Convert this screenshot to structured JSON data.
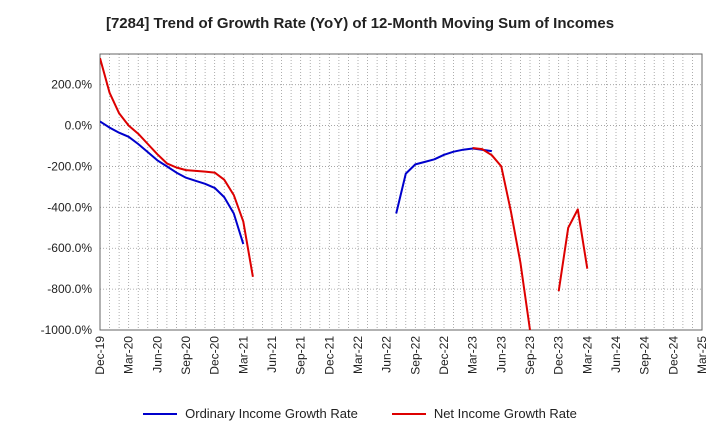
{
  "chart_data": {
    "type": "line",
    "title": "[7284]  Trend of Growth Rate (YoY) of 12-Month Moving Sum of Incomes",
    "xlabel": "",
    "ylabel": "",
    "ylim": [
      -1000,
      350
    ],
    "yticks": [
      200,
      0,
      -200,
      -400,
      -600,
      -800,
      -1000
    ],
    "ytick_labels": [
      "200.0%",
      "0.0%",
      "-200.0%",
      "-400.0%",
      "-600.0%",
      "-800.0%",
      "-1000.0%"
    ],
    "x_months": 63,
    "xticks": [
      0,
      3,
      6,
      9,
      12,
      15,
      18,
      21,
      24,
      27,
      30,
      33,
      36,
      39,
      42,
      45,
      48,
      51,
      54,
      57,
      60,
      63
    ],
    "xtick_labels": [
      "Dec-19",
      "Mar-20",
      "Jun-20",
      "Sep-20",
      "Dec-20",
      "Mar-21",
      "Jun-21",
      "Sep-21",
      "Dec-21",
      "Mar-22",
      "Jun-22",
      "Sep-22",
      "Dec-22",
      "Mar-23",
      "Jun-23",
      "Sep-23",
      "Dec-23",
      "Mar-24",
      "Jun-24",
      "Sep-24",
      "Dec-24",
      "Mar-25"
    ],
    "grid": true,
    "legend_position": "bottom",
    "series": [
      {
        "name": "Ordinary Income Growth Rate",
        "color": "#0000cc",
        "points": [
          [
            0,
            20
          ],
          [
            1,
            -10
          ],
          [
            2,
            -35
          ],
          [
            3,
            -55
          ],
          [
            4,
            -90
          ],
          [
            5,
            -130
          ],
          [
            6,
            -170
          ],
          [
            7,
            -200
          ],
          [
            8,
            -230
          ],
          [
            9,
            -255
          ],
          [
            10,
            -270
          ],
          [
            11,
            -285
          ],
          [
            12,
            -305
          ],
          [
            13,
            -350
          ],
          [
            14,
            -430
          ],
          [
            15,
            -580
          ],
          [
            31,
            -430
          ],
          [
            32,
            -235
          ],
          [
            33,
            -190
          ],
          [
            34,
            -178
          ],
          [
            35,
            -165
          ],
          [
            36,
            -143
          ],
          [
            37,
            -128
          ],
          [
            38,
            -118
          ],
          [
            39,
            -112
          ],
          [
            40,
            -118
          ],
          [
            41,
            -125
          ]
        ]
      },
      {
        "name": "Net Income Growth Rate",
        "color": "#dd0000",
        "points": [
          [
            0,
            330
          ],
          [
            1,
            160
          ],
          [
            2,
            60
          ],
          [
            3,
            0
          ],
          [
            4,
            -40
          ],
          [
            5,
            -90
          ],
          [
            6,
            -140
          ],
          [
            7,
            -185
          ],
          [
            8,
            -205
          ],
          [
            9,
            -218
          ],
          [
            10,
            -222
          ],
          [
            11,
            -225
          ],
          [
            12,
            -230
          ],
          [
            13,
            -265
          ],
          [
            14,
            -340
          ],
          [
            15,
            -470
          ],
          [
            16,
            -740
          ],
          null,
          [
            39,
            -110
          ],
          [
            40,
            -115
          ],
          [
            41,
            -145
          ],
          [
            42,
            -200
          ],
          [
            43,
            -420
          ],
          [
            44,
            -670
          ],
          [
            45,
            -1000
          ],
          null,
          [
            48,
            -810
          ],
          [
            49,
            -500
          ],
          [
            50,
            -410
          ],
          [
            51,
            -700
          ]
        ]
      }
    ]
  }
}
